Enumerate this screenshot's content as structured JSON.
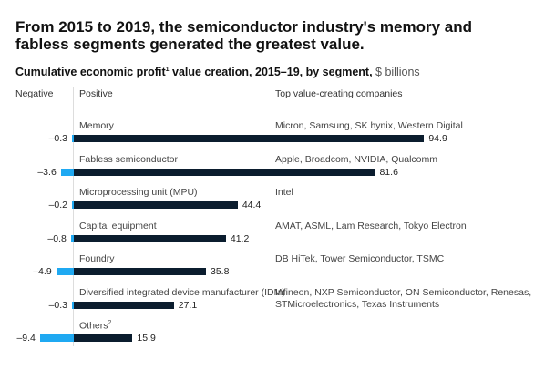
{
  "chart_data": {
    "type": "bar",
    "title": "From 2015 to 2019, the semiconductor industry's memory and fabless segments generated the greatest value.",
    "subtitle": "Cumulative economic profit",
    "subtitle_sup": "1",
    "subtitle_rest": " value creation, 2015–19, by segment, ",
    "unit": "$ billions",
    "headers": {
      "negative": "Negative",
      "positive": "Positive",
      "companies": "Top value-creating companies"
    },
    "categories": [
      "Memory",
      "Fabless semiconductor",
      "Microprocessing unit (MPU)",
      "Capital equipment",
      "Foundry",
      "Diversified integrated device manufacturer (IDM)",
      "Others"
    ],
    "category_sups": [
      "",
      "",
      "",
      "",
      "",
      "",
      "2"
    ],
    "series": [
      {
        "name": "Negative",
        "color": "#1fa9f2",
        "values": [
          -0.3,
          -3.6,
          -0.2,
          -0.8,
          -4.9,
          -0.3,
          -9.4
        ],
        "labels": [
          "–0.3",
          "–3.6",
          "–0.2",
          "–0.8",
          "–4.9",
          "–0.3",
          "–9.4"
        ]
      },
      {
        "name": "Positive",
        "color": "#0b1d2e",
        "values": [
          94.9,
          81.6,
          44.4,
          41.2,
          35.8,
          27.1,
          15.9
        ],
        "labels": [
          "94.9",
          "81.6",
          "44.4",
          "41.2",
          "35.8",
          "27.1",
          "15.9"
        ]
      }
    ],
    "companies": [
      "Micron, Samsung, SK hynix, Western Digital",
      "Apple, Broadcom, NVIDIA, Qualcomm",
      "Intel",
      "AMAT, ASML, Lam Research, Tokyo Electron",
      "DB HiTek, Tower Semiconductor, TSMC",
      "Infineon, NXP Semiconductor, ON Semiconductor, Renesas, STMicroelectronics, Texas Instruments",
      ""
    ]
  }
}
